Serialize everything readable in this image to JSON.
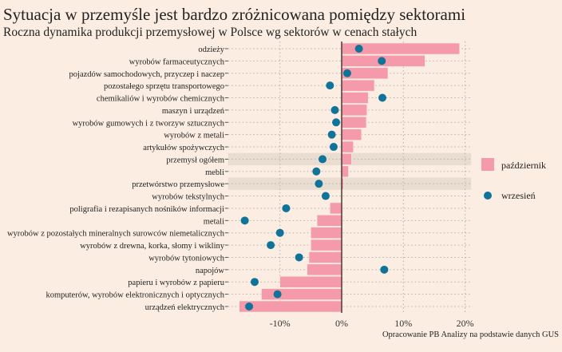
{
  "title": "Sytuacja w przemyśle jest bardzo zróżnicowana pomiędzy sektorami",
  "subtitle": "Roczna dynamika produkcji przemysłowej w Polsce wg sektorów w cenach stałych",
  "source": "Opracowanie PB Analizy na podstawie danych GUS",
  "colors": {
    "background": "#fbede1",
    "bar": "#f59aaa",
    "dot": "#0f739a",
    "highlight": "#e8ddd0"
  },
  "chart_data": {
    "type": "bar",
    "orientation": "horizontal",
    "categories": [
      "odzieży",
      "wyrobów farmaceutycznych",
      "pojazdów samochodowych, przyczep i naczep",
      "pozostałego sprzętu transportowego",
      "chemikaliów i wyrobów chemicznych",
      "maszyn i urządzeń",
      "wyrobów gumowych i z tworzyw sztucznych",
      "wyrobów z metali",
      "artykułów spożywczych",
      "przemysł ogółem",
      "mebli",
      "przetwórstwo przemysłowe",
      "wyrobów tekstylnych",
      "poligrafia i rezapisanych nośników informacji",
      "metali",
      "wyrobów z pozostałych mineralnych surowców niemetalicznych",
      "wyrobów z drewna, korka, słomy i wikliny",
      "wyrobów tytoniowych",
      "napojów",
      "papieru i wyrobów z papieru",
      "komputerów, wyrobów elektronicznych i optycznych",
      "urządzeń elektrycznych"
    ],
    "highlighted": [
      "przemysł ogółem",
      "przetwórstwo przemysłowe"
    ],
    "series": [
      {
        "name": "październik",
        "mark": "bar",
        "values": [
          19.1,
          13.5,
          7.5,
          5.3,
          4.3,
          4.1,
          4.0,
          3.2,
          1.9,
          1.6,
          1.1,
          0.3,
          0.1,
          -1.9,
          -4.0,
          -5.0,
          -5.0,
          -5.3,
          -5.6,
          -10.0,
          -13.0,
          -16.6
        ]
      },
      {
        "name": "wrzesień",
        "mark": "dot",
        "values": [
          2.8,
          6.5,
          0.9,
          -1.9,
          6.6,
          -1.1,
          -0.9,
          -1.6,
          -1.3,
          -3.1,
          -4.1,
          -3.7,
          -2.6,
          -9.0,
          -15.7,
          -10.0,
          -11.5,
          -6.9,
          6.9,
          -14.1,
          -10.4,
          -15.0
        ]
      }
    ],
    "xticks": [
      "-10%",
      "0%",
      "10%",
      "20%"
    ],
    "xtick_values": [
      -10,
      0,
      10,
      20
    ],
    "xlim": [
      -18.4,
      21
    ],
    "grid": true,
    "legend": "right"
  }
}
